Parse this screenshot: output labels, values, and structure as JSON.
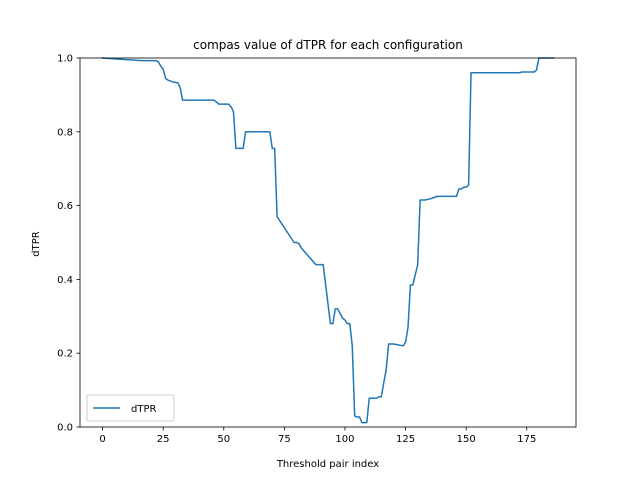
{
  "chart_data": {
    "type": "line",
    "title": "compas value of dTPR for each configuration",
    "xlabel": "Threshold pair index",
    "ylabel": "dTPR",
    "xlim": [
      -9.3,
      195.3
    ],
    "ylim": [
      0.0,
      1.0
    ],
    "xticks": [
      0,
      25,
      50,
      75,
      100,
      125,
      150,
      175
    ],
    "yticks": [
      0.0,
      0.2,
      0.4,
      0.6,
      0.8,
      1.0
    ],
    "xtick_labels": [
      "0",
      "25",
      "50",
      "75",
      "100",
      "125",
      "150",
      "175"
    ],
    "ytick_labels": [
      "0.0",
      "0.2",
      "0.4",
      "0.6",
      "0.8",
      "1.0"
    ],
    "grid": false,
    "legend": {
      "placement": "lower-left",
      "entries": [
        "dTPR"
      ]
    },
    "series": [
      {
        "name": "dTPR",
        "color": "#1f77b4",
        "x": [
          0,
          16,
          22,
          23,
          24,
          25,
          26,
          27,
          29,
          31,
          32,
          33,
          46,
          48,
          52,
          53,
          54,
          55,
          56,
          58,
          59,
          67,
          69,
          70,
          71,
          72,
          79,
          80,
          81,
          82,
          88,
          89,
          90,
          91,
          94,
          95,
          96,
          97,
          99,
          100,
          101,
          102,
          103,
          104,
          105,
          106,
          107,
          108,
          109,
          110,
          113,
          114,
          115,
          116,
          117,
          118,
          119,
          120,
          124,
          125,
          126,
          127,
          128,
          130,
          131,
          132,
          133,
          136,
          138,
          146,
          147,
          148,
          149,
          150,
          151,
          152,
          172,
          173,
          178,
          179,
          180,
          186
        ],
        "y": [
          1.0,
          0.993,
          0.993,
          0.99,
          0.978,
          0.97,
          0.945,
          0.94,
          0.935,
          0.933,
          0.92,
          0.886,
          0.886,
          0.875,
          0.875,
          0.868,
          0.855,
          0.755,
          0.755,
          0.755,
          0.8,
          0.8,
          0.8,
          0.755,
          0.755,
          0.57,
          0.5,
          0.5,
          0.497,
          0.485,
          0.44,
          0.44,
          0.44,
          0.44,
          0.28,
          0.28,
          0.32,
          0.32,
          0.295,
          0.29,
          0.28,
          0.28,
          0.22,
          0.03,
          0.027,
          0.027,
          0.012,
          0.012,
          0.012,
          0.078,
          0.078,
          0.082,
          0.082,
          0.12,
          0.155,
          0.225,
          0.225,
          0.225,
          0.22,
          0.23,
          0.27,
          0.385,
          0.385,
          0.44,
          0.615,
          0.615,
          0.615,
          0.62,
          0.625,
          0.625,
          0.645,
          0.645,
          0.65,
          0.65,
          0.655,
          0.96,
          0.96,
          0.962,
          0.962,
          0.967,
          1.0,
          1.0
        ]
      }
    ]
  }
}
